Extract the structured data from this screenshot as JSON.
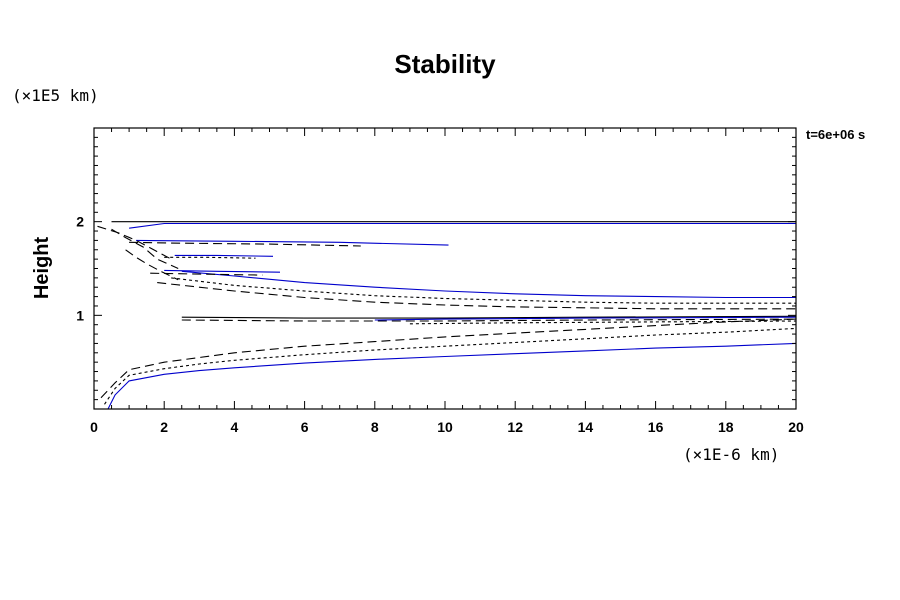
{
  "chart_data": {
    "type": "line",
    "title": "Stability",
    "ylabel": "Height",
    "yunits": "(×1E5 km)",
    "xunits": "(×1E-6 km)",
    "timestamp": "t=6e+06 s",
    "xlim": [
      0,
      20
    ],
    "ylim": [
      0,
      3
    ],
    "xticks": [
      0,
      2,
      4,
      6,
      8,
      10,
      12,
      14,
      16,
      18,
      20
    ],
    "yticks": [
      1,
      2
    ],
    "grid": false,
    "colors": {
      "axis": "#000000",
      "black": "#000000",
      "blue": "#0000cc"
    },
    "series": [
      {
        "style": "solid",
        "color": "black",
        "x": [
          0.5,
          20
        ],
        "y": [
          2.0,
          2.0
        ]
      },
      {
        "style": "solid",
        "color": "blue",
        "x": [
          1.0,
          2.0,
          20
        ],
        "y": [
          1.93,
          1.98,
          1.98
        ]
      },
      {
        "style": "solid",
        "color": "blue",
        "x": [
          0.4,
          0.6,
          1,
          2,
          3,
          4,
          6,
          8,
          10,
          12,
          14,
          16,
          18,
          20
        ],
        "y": [
          0.0,
          0.15,
          0.3,
          0.37,
          0.41,
          0.44,
          0.49,
          0.53,
          0.56,
          0.59,
          0.62,
          0.65,
          0.67,
          0.7
        ]
      },
      {
        "style": "dotted",
        "color": "black",
        "x": [
          0.3,
          0.6,
          1,
          2,
          3,
          4,
          6,
          8,
          10,
          12,
          14,
          16,
          18,
          20
        ],
        "y": [
          0.05,
          0.22,
          0.36,
          0.43,
          0.48,
          0.52,
          0.58,
          0.63,
          0.67,
          0.71,
          0.75,
          0.79,
          0.82,
          0.86
        ]
      },
      {
        "style": "dashed",
        "color": "black",
        "x": [
          0.2,
          0.6,
          1,
          2,
          3,
          4,
          6,
          8,
          10,
          12,
          14,
          16,
          18,
          20
        ],
        "y": [
          0.12,
          0.28,
          0.42,
          0.5,
          0.55,
          0.6,
          0.67,
          0.72,
          0.77,
          0.81,
          0.85,
          0.89,
          0.93,
          0.96
        ]
      },
      {
        "style": "solid",
        "color": "blue",
        "x": [
          2.5,
          4,
          6,
          8,
          10,
          12,
          14,
          16,
          18,
          20
        ],
        "y": [
          1.47,
          1.42,
          1.35,
          1.3,
          1.26,
          1.23,
          1.21,
          1.2,
          1.19,
          1.19
        ]
      },
      {
        "style": "dotted",
        "color": "black",
        "x": [
          2.2,
          4,
          6,
          8,
          10,
          12,
          14,
          16,
          18,
          20
        ],
        "y": [
          1.4,
          1.32,
          1.26,
          1.21,
          1.18,
          1.16,
          1.14,
          1.13,
          1.13,
          1.13
        ]
      },
      {
        "style": "dashed",
        "color": "black",
        "x": [
          1.8,
          4,
          6,
          8,
          10,
          12,
          14,
          16,
          18,
          20
        ],
        "y": [
          1.35,
          1.26,
          1.19,
          1.14,
          1.11,
          1.09,
          1.08,
          1.07,
          1.07,
          1.07
        ]
      },
      {
        "style": "solid",
        "color": "black",
        "x": [
          2.5,
          6,
          10,
          14,
          20
        ],
        "y": [
          0.98,
          0.97,
          0.97,
          0.98,
          0.99
        ]
      },
      {
        "style": "solid",
        "color": "blue",
        "x": [
          8,
          10,
          14,
          20
        ],
        "y": [
          0.95,
          0.96,
          0.97,
          0.98
        ]
      },
      {
        "style": "dashed",
        "color": "black",
        "x": [
          2.5,
          6,
          10,
          14,
          20
        ],
        "y": [
          0.95,
          0.94,
          0.94,
          0.95,
          0.96
        ]
      },
      {
        "style": "dotted",
        "color": "black",
        "x": [
          9,
          12,
          16,
          20
        ],
        "y": [
          0.91,
          0.92,
          0.93,
          0.94
        ]
      },
      {
        "style": "solid",
        "color": "blue",
        "x": [
          1.2,
          4,
          7,
          10.1
        ],
        "y": [
          1.8,
          1.79,
          1.78,
          1.75
        ]
      },
      {
        "style": "dashed",
        "color": "black",
        "x": [
          1.0,
          2.5,
          5,
          7.6
        ],
        "y": [
          1.78,
          1.77,
          1.76,
          1.74
        ]
      },
      {
        "style": "solid",
        "color": "blue",
        "x": [
          2.3,
          3.5,
          5.1
        ],
        "y": [
          1.64,
          1.64,
          1.63
        ]
      },
      {
        "style": "dotted",
        "color": "black",
        "x": [
          2.0,
          3.2,
          4.6
        ],
        "y": [
          1.62,
          1.62,
          1.61
        ]
      },
      {
        "style": "solid",
        "color": "blue",
        "x": [
          2.0,
          3.5,
          5.3
        ],
        "y": [
          1.48,
          1.47,
          1.46
        ]
      },
      {
        "style": "dashed",
        "color": "black",
        "x": [
          1.6,
          3.0,
          4.8
        ],
        "y": [
          1.45,
          1.44,
          1.43
        ]
      },
      {
        "style": "dashed",
        "color": "black",
        "x": [
          0.1,
          0.7,
          1.2,
          1.6,
          2.2
        ],
        "y": [
          1.95,
          1.88,
          1.8,
          1.72,
          1.6
        ]
      },
      {
        "style": "dashed",
        "color": "black",
        "x": [
          0.5,
          0.9,
          1.4,
          1.8,
          2.4
        ],
        "y": [
          1.92,
          1.83,
          1.73,
          1.6,
          1.5
        ]
      },
      {
        "style": "dashed",
        "color": "black",
        "x": [
          0.9,
          1.2,
          1.5,
          1.9,
          2.4
        ],
        "y": [
          1.7,
          1.62,
          1.55,
          1.47,
          1.38
        ]
      },
      {
        "style": "solid",
        "color": "blue",
        "x": [
          19.2,
          20
        ],
        "y": [
          0.0,
          0.0
        ]
      }
    ]
  }
}
